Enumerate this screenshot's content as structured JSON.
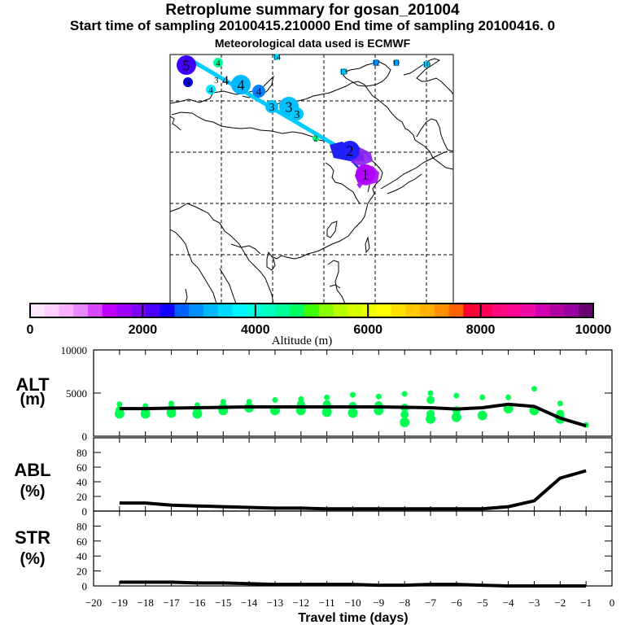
{
  "titles": {
    "main": "Retroplume summary for gosan_201004",
    "sampling": "Start time of sampling 20100415.210000     End time of sampling 20100416.     0",
    "met": "Meteorological data used is ECMWF"
  },
  "map": {
    "trajectory_labels": [
      {
        "text": "1",
        "day": -1,
        "color": "#b000ff",
        "size": "large"
      },
      {
        "text": "2",
        "day": -2,
        "color": "#2020ff",
        "size": "large"
      },
      {
        "text": "3",
        "day": -3,
        "color": "#00c0ff",
        "size": "large"
      },
      {
        "text": "3",
        "day": -3,
        "color": "#00c0ff",
        "size": "medium"
      },
      {
        "text": "3",
        "day": -3,
        "color": "#00c8ff",
        "size": "medium"
      },
      {
        "text": "4",
        "day": -4,
        "color": "#00b8ff",
        "size": "large"
      },
      {
        "text": "4",
        "day": -4,
        "color": "#0080ff",
        "size": "medium"
      },
      {
        "text": "4",
        "day": -4,
        "color": "#00ffa0",
        "size": "small"
      },
      {
        "text": "4",
        "day": -4,
        "color": "#00e8ff",
        "size": "small"
      },
      {
        "text": "5",
        "day": -5,
        "color": "#4000ff",
        "size": "large"
      },
      {
        "text": "5",
        "day": -5,
        "color": "#0000e0",
        "size": "small"
      },
      {
        "text": "2",
        "day": -2,
        "color": "#00ff80",
        "size": "tiny"
      },
      {
        "text": "10",
        "day": -10,
        "color": "#00d0ff",
        "size": "tiny"
      },
      {
        "text": "11",
        "day": -11,
        "color": "#00a0ff",
        "size": "tiny"
      },
      {
        "text": "12",
        "day": -12,
        "color": "#0090ff",
        "size": "tiny"
      },
      {
        "text": "13",
        "day": -13,
        "color": "#00c0ff",
        "size": "tiny"
      },
      {
        "text": "14",
        "day": -14,
        "color": "#00d0ff",
        "size": "tiny"
      }
    ]
  },
  "colorbar": {
    "label": "Altitude (m)",
    "ticks": [
      "0",
      "2000",
      "4000",
      "6000",
      "8000",
      "10000"
    ],
    "range": [
      0,
      10000
    ],
    "colors": [
      "#ffe8ff",
      "#ffd0ff",
      "#f8b0ff",
      "#e888ff",
      "#d848ff",
      "#c000ff",
      "#a000ff",
      "#8000ff",
      "#4800ff",
      "#1000ff",
      "#0060ff",
      "#0090ff",
      "#00b8ff",
      "#00d8ff",
      "#00f4ff",
      "#00ffe0",
      "#00ffc0",
      "#00ff98",
      "#00ff60",
      "#40ff00",
      "#88ff00",
      "#b8ff00",
      "#d8ff00",
      "#f0ff00",
      "#ffff00",
      "#ffe000",
      "#ffc800",
      "#ffb000",
      "#ff9000",
      "#ff6000",
      "#ff0030",
      "#ff0058",
      "#ff0880",
      "#ff0898",
      "#f008a8",
      "#d000b0",
      "#b000a0",
      "#9800a0",
      "#680070"
    ]
  },
  "chart_data": [
    {
      "type": "line",
      "name": "ALT",
      "ylabel": "ALT\n(m)",
      "ylabel_line1": "ALT",
      "ylabel_line2": "(m)",
      "yticks": [
        "0",
        "5000",
        "10000"
      ],
      "ylim": [
        0,
        10000
      ],
      "xlim": [
        -20,
        0
      ],
      "x": [
        -19,
        -18,
        -17,
        -16,
        -15,
        -14,
        -13,
        -12,
        -11,
        -10,
        -9,
        -8,
        -7,
        -6,
        -5,
        -4,
        -3,
        -2,
        -1
      ],
      "values": [
        3200,
        3200,
        3250,
        3300,
        3350,
        3400,
        3400,
        3400,
        3400,
        3400,
        3400,
        3350,
        3300,
        3150,
        3300,
        3700,
        3450,
        2100,
        1200
      ],
      "scatter_color": "#00ff50",
      "scatter_points": [
        {
          "x": -19,
          "y": [
            3700,
            3000,
            2600
          ]
        },
        {
          "x": -18,
          "y": [
            3500,
            2900,
            2600
          ]
        },
        {
          "x": -17,
          "y": [
            3800,
            3200,
            2700
          ]
        },
        {
          "x": -16,
          "y": [
            3600,
            3100,
            2600
          ]
        },
        {
          "x": -15,
          "y": [
            4000,
            3400,
            3000
          ]
        },
        {
          "x": -14,
          "y": [
            4000,
            3300
          ]
        },
        {
          "x": -13,
          "y": [
            4200,
            3000
          ]
        },
        {
          "x": -12,
          "y": [
            4300,
            3700,
            3000
          ]
        },
        {
          "x": -11,
          "y": [
            4500,
            3700,
            2800
          ]
        },
        {
          "x": -10,
          "y": [
            4800,
            3500,
            2700
          ]
        },
        {
          "x": -9,
          "y": [
            4600,
            3600,
            3000
          ]
        },
        {
          "x": -8,
          "y": [
            4900,
            3300,
            2500,
            1600
          ]
        },
        {
          "x": -7,
          "y": [
            5000,
            4200,
            2600,
            2000
          ]
        },
        {
          "x": -6,
          "y": [
            4700,
            3000,
            2200
          ]
        },
        {
          "x": -5,
          "y": [
            4500,
            2400
          ]
        },
        {
          "x": -4,
          "y": [
            4500,
            3200
          ]
        },
        {
          "x": -3,
          "y": [
            5500,
            3000
          ]
        },
        {
          "x": -2,
          "y": [
            3800,
            2600,
            2000
          ]
        },
        {
          "x": -1,
          "y": [
            1300
          ]
        }
      ]
    },
    {
      "type": "line",
      "name": "ABL",
      "ylabel_line1": "ABL",
      "ylabel_line2": "(%)",
      "yticks": [
        "0",
        "20",
        "40",
        "60",
        "80"
      ],
      "ylim": [
        0,
        100
      ],
      "xlim": [
        -20,
        0
      ],
      "x": [
        -19,
        -18,
        -17,
        -16,
        -15,
        -14,
        -13,
        -12,
        -11,
        -10,
        -9,
        -8,
        -7,
        -6,
        -5,
        -4,
        -3,
        -2,
        -1
      ],
      "values": [
        11,
        11,
        8,
        7,
        6,
        5,
        4,
        4,
        3,
        3,
        3,
        3,
        3,
        3,
        3,
        6,
        14,
        45,
        55
      ]
    },
    {
      "type": "line",
      "name": "STR",
      "ylabel_line1": "STR",
      "ylabel_line2": "(%)",
      "yticks": [
        "0",
        "20",
        "40",
        "60",
        "80"
      ],
      "ylim": [
        0,
        100
      ],
      "xlim": [
        -20,
        0
      ],
      "x": [
        -19,
        -18,
        -17,
        -16,
        -15,
        -14,
        -13,
        -12,
        -11,
        -10,
        -9,
        -8,
        -7,
        -6,
        -5,
        -4,
        -3,
        -2,
        -1
      ],
      "values": [
        5,
        5,
        5,
        4,
        4,
        3,
        2,
        2,
        2,
        2,
        1,
        1,
        2,
        2,
        1,
        0,
        0,
        0,
        0
      ],
      "xlabel": "Travel time (days)",
      "xticks": [
        "-20",
        "-19",
        "-18",
        "-17",
        "-16",
        "-15",
        "-14",
        "-13",
        "-12",
        "-11",
        "-10",
        "-9",
        "-8",
        "-7",
        "-6",
        "-5",
        "-4",
        "-3",
        "-2",
        "-1",
        "0"
      ]
    }
  ]
}
